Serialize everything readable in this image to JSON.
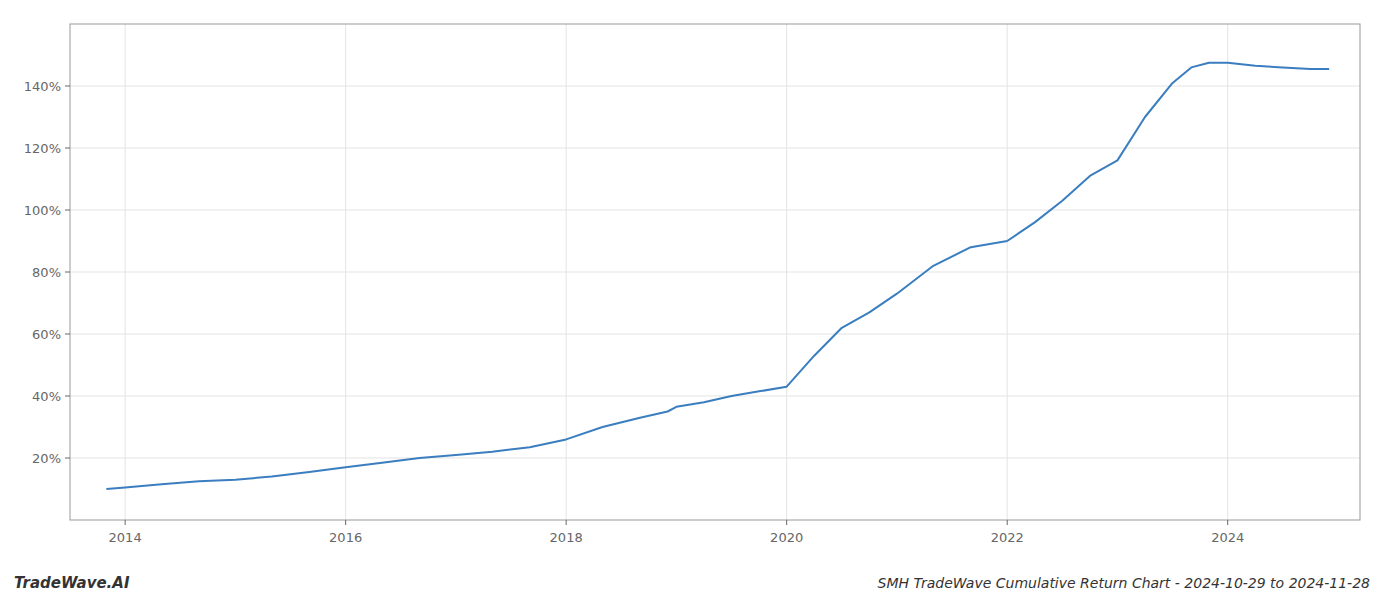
{
  "chart_data": {
    "type": "line",
    "title": "SMH TradeWave Cumulative Return Chart - 2024-10-29 to 2024-11-28",
    "annotations": [
      "TradeWave.AI"
    ],
    "x": [
      2013.83,
      2014.0,
      2014.33,
      2014.67,
      2015.0,
      2015.33,
      2015.67,
      2016.0,
      2016.33,
      2016.67,
      2017.0,
      2017.33,
      2017.67,
      2018.0,
      2018.33,
      2018.67,
      2018.92,
      2019.0,
      2019.25,
      2019.5,
      2019.75,
      2020.0,
      2020.25,
      2020.5,
      2020.75,
      2021.0,
      2021.33,
      2021.67,
      2022.0,
      2022.25,
      2022.5,
      2022.75,
      2023.0,
      2023.25,
      2023.5,
      2023.67,
      2023.83,
      2024.0,
      2024.25,
      2024.5,
      2024.75,
      2024.92
    ],
    "values": [
      10.0,
      10.5,
      11.5,
      12.5,
      13.0,
      14.0,
      15.5,
      17.0,
      18.5,
      20.0,
      21.0,
      22.0,
      23.5,
      26.0,
      30.0,
      33.0,
      35.0,
      36.5,
      38.0,
      40.0,
      41.5,
      43.0,
      53.0,
      62.0,
      67.0,
      73.0,
      82.0,
      88.0,
      90.0,
      96.0,
      103.0,
      111.0,
      116.0,
      130.0,
      141.0,
      146.0,
      147.5,
      147.5,
      146.5,
      146.0,
      145.5,
      145.5
    ],
    "color": "#3a7ebf",
    "xlim": [
      2013.5,
      2025.2
    ],
    "xticks": [
      2014,
      2016,
      2018,
      2020,
      2022,
      2024
    ],
    "ylim": [
      0,
      160
    ],
    "yticks": [
      {
        "value": 20,
        "label": "20%"
      },
      {
        "value": 40,
        "label": "40%"
      },
      {
        "value": 60,
        "label": "60%"
      },
      {
        "value": 80,
        "label": "80%"
      },
      {
        "value": 100,
        "label": "100%"
      },
      {
        "value": 120,
        "label": "120%"
      },
      {
        "value": 140,
        "label": "140%"
      }
    ],
    "grid": true
  }
}
